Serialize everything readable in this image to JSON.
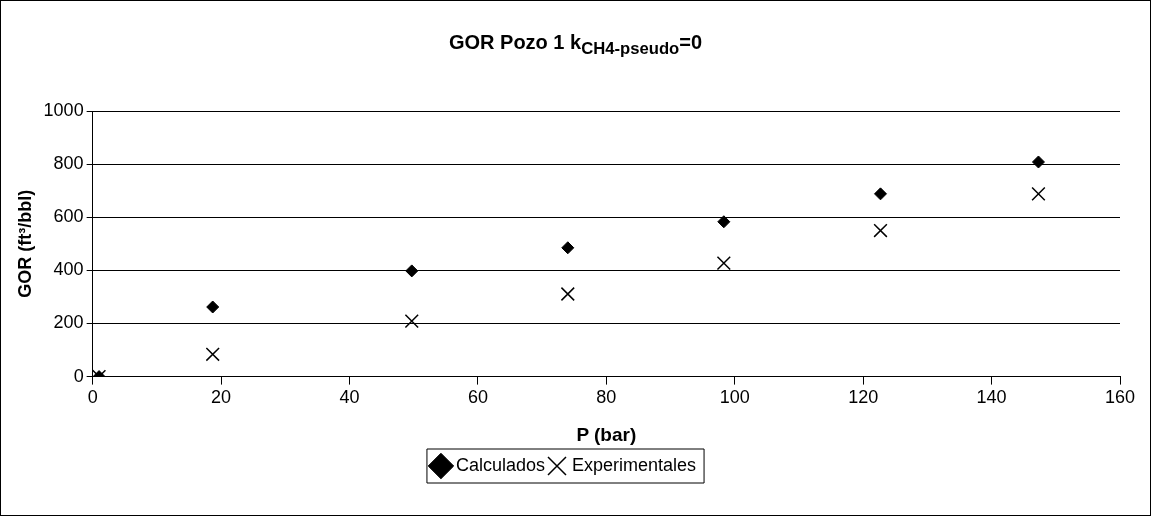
{
  "chart_data": {
    "type": "scatter",
    "title": "GOR Pozo 1 k$_{CH4-pseudo}$=0",
    "xlabel": "P (bar)",
    "ylabel": "GOR (ft³/bbl)",
    "series": [
      {
        "name": "Calculados",
        "color": "#000000",
        "marker": "diamond",
        "x": [
          1,
          18.7,
          49.7,
          74,
          98.3,
          122.7,
          147.3
        ],
        "values": [
          0,
          262,
          398,
          485,
          583,
          688,
          808
        ]
      },
      {
        "name": "Experimentales",
        "color": "#000000",
        "marker": "cross",
        "x": [
          1,
          18.7,
          49.7,
          74,
          98.3,
          122.7,
          147.3
        ],
        "values": [
          0,
          84,
          209,
          311,
          427,
          550,
          688
        ]
      }
    ],
    "xlim": [
      0,
      160
    ],
    "xticks": [
      0,
      20,
      40,
      60,
      80,
      100,
      120,
      140,
      160
    ],
    "ylim": [
      0,
      1000
    ],
    "yticks": [
      0,
      200,
      400,
      600,
      800,
      1000
    ],
    "grid": "y",
    "legend": "bottom"
  }
}
